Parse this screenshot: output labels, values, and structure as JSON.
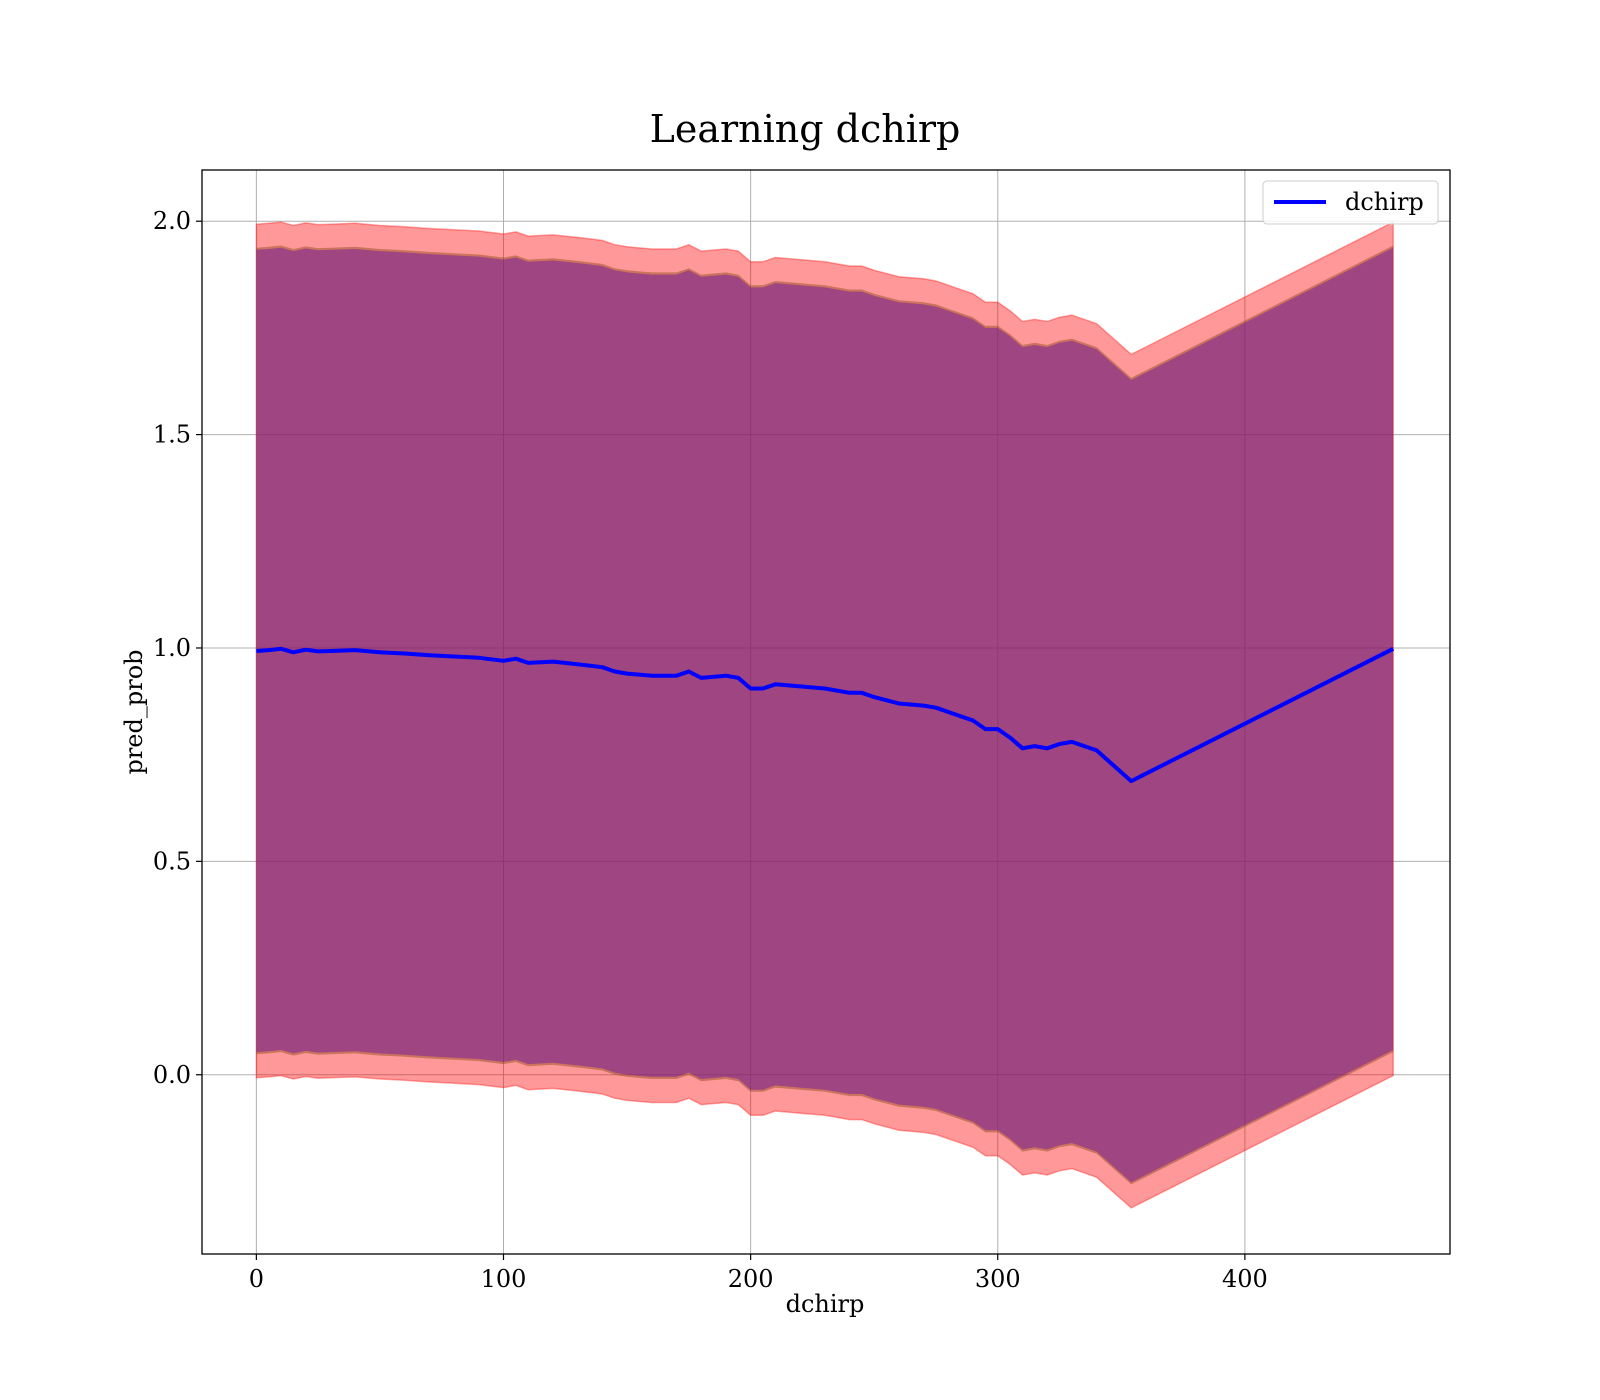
{
  "chart_data": {
    "type": "line",
    "title": "Learning dchirp",
    "xlabel": "dchirp",
    "ylabel": "pred_prob",
    "xlim": [
      -22,
      483
    ],
    "ylim": [
      -0.42,
      2.12
    ],
    "xticks": [
      0,
      100,
      200,
      300,
      400
    ],
    "xtick_labels": [
      "0",
      "100",
      "200",
      "300",
      "400"
    ],
    "yticks": [
      0.0,
      0.5,
      1.0,
      1.5,
      2.0
    ],
    "ytick_labels": [
      "0.0",
      "0.5",
      "1.0",
      "1.5",
      "2.0"
    ],
    "grid": true,
    "legend": {
      "position": "top-right",
      "entries": [
        "dchirp"
      ]
    },
    "series": [
      {
        "name": "dchirp",
        "color": "#0000ff",
        "x": [
          0,
          5,
          10,
          15,
          20,
          25,
          30,
          40,
          50,
          60,
          70,
          80,
          90,
          100,
          105,
          110,
          120,
          130,
          140,
          145,
          150,
          160,
          170,
          175,
          180,
          190,
          195,
          200,
          205,
          210,
          220,
          230,
          240,
          245,
          250,
          260,
          270,
          275,
          280,
          290,
          295,
          300,
          305,
          310,
          315,
          320,
          325,
          330,
          340,
          354,
          460
        ],
        "y": [
          0.993,
          0.995,
          0.998,
          0.99,
          0.996,
          0.992,
          0.993,
          0.995,
          0.99,
          0.987,
          0.983,
          0.98,
          0.977,
          0.97,
          0.975,
          0.965,
          0.968,
          0.962,
          0.955,
          0.945,
          0.94,
          0.935,
          0.935,
          0.945,
          0.93,
          0.935,
          0.93,
          0.905,
          0.905,
          0.915,
          0.91,
          0.905,
          0.895,
          0.895,
          0.885,
          0.87,
          0.865,
          0.86,
          0.85,
          0.83,
          0.81,
          0.81,
          0.79,
          0.765,
          0.77,
          0.765,
          0.775,
          0.78,
          0.76,
          0.688,
          0.998
        ]
      }
    ],
    "bands": [
      {
        "role": "outer",
        "color": "#ff0000",
        "offset": 0.0
      },
      {
        "role": "inner",
        "color": "#8b4513",
        "offset": 0.055
      },
      {
        "role": "core",
        "color": "#6a0dad",
        "offset": 0.06
      }
    ]
  }
}
